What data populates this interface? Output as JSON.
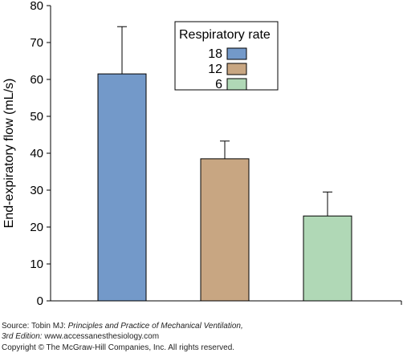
{
  "chart_data": {
    "type": "bar",
    "ylabel": "End-expiratory flow (mL/s)",
    "ylim": [
      0,
      80
    ],
    "yticks": [
      0,
      10,
      20,
      30,
      40,
      50,
      60,
      70,
      80
    ],
    "legend_title": "Respiratory rate",
    "legend_position": "top-right",
    "grid": false,
    "series": [
      {
        "name": "18",
        "value": 61.5,
        "error": 12.8,
        "color": "#7399c9"
      },
      {
        "name": "12",
        "value": 38.5,
        "error": 4.8,
        "color": "#c8a682"
      },
      {
        "name": "6",
        "value": 23.0,
        "error": 6.5,
        "color": "#b0d8b6"
      }
    ]
  },
  "caption": {
    "line1_prefix": "Source: Tobin MJ: ",
    "line1_italic": "Principles and Practice of Mechanical Ventilation,",
    "line2_italic": "3rd Edition:",
    "line2_suffix": " www.accessanesthesiology.com",
    "line3": "Copyright © The McGraw-Hill Companies, Inc. All rights reserved."
  }
}
